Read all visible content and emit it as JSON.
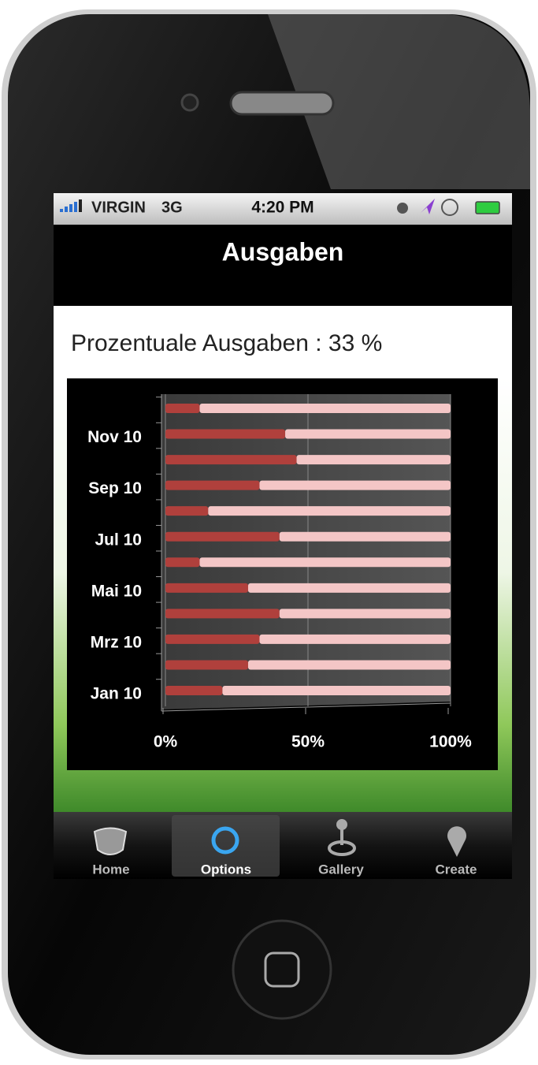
{
  "status_bar": {
    "carrier": "VIRGIN",
    "network": "3G",
    "time": "4:20 PM"
  },
  "nav_bar": {
    "title": "Ausgaben"
  },
  "summary": {
    "text": "Prozentuale Ausgaben : 33 %"
  },
  "chart_data": {
    "type": "stacked-bar-horizontal",
    "categories": [
      "Jan 10",
      null,
      "Mrz 10",
      null,
      "Mai 10",
      null,
      "Jul 10",
      null,
      "Sep 10",
      null,
      "Nov 10",
      null
    ],
    "series": [
      {
        "color": "#b0403c",
        "values": [
          20,
          29,
          33,
          40,
          29,
          12,
          40,
          15,
          33,
          46,
          42,
          12
        ]
      },
      {
        "color": "#f4c6c6",
        "values": [
          80,
          71,
          67,
          60,
          71,
          88,
          60,
          85,
          67,
          54,
          58,
          88
        ]
      }
    ],
    "xlim": [
      0,
      100
    ],
    "xticks": [
      {
        "value": 0,
        "label": "0%"
      },
      {
        "value": 50,
        "label": "50%"
      },
      {
        "value": 100,
        "label": "100%"
      }
    ],
    "grid": true
  },
  "tab_bar": {
    "tabs": [
      "Home",
      "Options",
      "Gallery",
      "Create"
    ],
    "selected": 1
  }
}
